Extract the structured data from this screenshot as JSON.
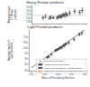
{
  "chart_data": [
    {
      "type": "scatter",
      "title": "Heavy Fission products",
      "y_label": "Average mass of heavy products",
      "xlim": [
        218,
        262
      ],
      "xticks": [
        220,
        230,
        240,
        250,
        260
      ],
      "ylim": [
        137,
        147
      ],
      "yticks": [
        138,
        140,
        142,
        144,
        146
      ],
      "grid": false,
      "tick_labels": "y",
      "reference_lines": [
        {
          "y": 141.5,
          "color": "#888888"
        }
      ],
      "series": [
        {
          "type": "scatter",
          "marker": "plus",
          "color": "#222222",
          "x": [
            227,
            229,
            232,
            233,
            235,
            238,
            239,
            240,
            241,
            242,
            243,
            244,
            245,
            246,
            248,
            252,
            256,
            258
          ],
          "values": [
            140.2,
            141.0,
            140.0,
            140.5,
            140.3,
            140.1,
            140.6,
            141.0,
            140.8,
            141.3,
            141.8,
            141.5,
            142.2,
            141.8,
            142.8,
            143.8,
            143.2,
            144.2
          ],
          "yerr": [
            0.8,
            1.0,
            0.7,
            0.8,
            0.6,
            0.7,
            0.8,
            0.9,
            0.9,
            1.0,
            0.9,
            1.0,
            1.1,
            0.9,
            1.0,
            1.2,
            1.1,
            1.4
          ]
        }
      ]
    },
    {
      "type": "scatter",
      "title": "Light Fission products",
      "x_label": "Mass of Fissioning Nucleus",
      "y_label": "Average mass of light products",
      "xlim": [
        218,
        262
      ],
      "xticks": [
        220,
        230,
        240,
        250,
        260
      ],
      "ylim": [
        79,
        116
      ],
      "yticks": [
        80,
        85,
        90,
        95,
        100,
        105,
        110
      ],
      "grid": false,
      "legend": "lower right",
      "series": [
        {
          "name": "Experimental Data",
          "type": "scatter",
          "marker": "plus",
          "color": "#222222",
          "x": [
            227,
            229,
            232,
            233,
            235,
            238,
            239,
            240,
            241,
            242,
            243,
            244,
            245,
            246,
            248,
            252,
            256,
            258
          ],
          "values": [
            86.0,
            87.0,
            91.5,
            92.0,
            94.0,
            97.5,
            98.0,
            98.5,
            99.5,
            100.0,
            100.5,
            102.0,
            102.2,
            103.5,
            104.5,
            107.5,
            112.0,
            113.0
          ],
          "yerr": [
            0.9,
            1.0,
            0.7,
            0.8,
            0.6,
            0.7,
            0.8,
            0.9,
            0.9,
            1.0,
            0.9,
            1.0,
            1.1,
            0.9,
            1.0,
            1.2,
            1.1,
            1.4
          ]
        },
        {
          "name": "Phenomenological Theory",
          "type": "line",
          "line_style": "solid",
          "color": "#444444",
          "x": [
            220,
            260
          ],
          "values": [
            82,
            116
          ]
        },
        {
          "name": "Numerical calculation-Adjusted Theory",
          "type": "line",
          "line_style": "dashed",
          "x": [],
          "values": []
        },
        {
          "name": "Numerical calculation-Unadjusted Theory",
          "type": "line",
          "line_style": "dotted",
          "x": [],
          "values": []
        }
      ]
    }
  ]
}
